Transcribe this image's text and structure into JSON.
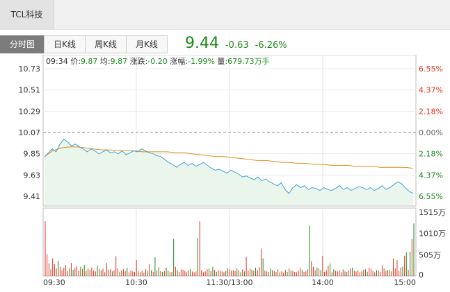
{
  "stock_tab": {
    "label": "TCL科技"
  },
  "tabs": [
    {
      "label": "分时图",
      "active": true
    },
    {
      "label": "日K线",
      "active": false
    },
    {
      "label": "周K线",
      "active": false
    },
    {
      "label": "月K线",
      "active": false
    }
  ],
  "quote": {
    "price": "9.44",
    "change": "-0.63",
    "change_pct": "-6.26%"
  },
  "info": {
    "time": "09:34",
    "price_label": "价:",
    "price": "9.87",
    "avg_label": "均:",
    "avg": "9.87",
    "change_label": "涨跌:",
    "change": "-0.20",
    "pct_label": "涨幅:",
    "pct": "-1.99%",
    "vol_label": "量:",
    "vol": "679.73万手"
  },
  "colors": {
    "up": "#e0331f",
    "down": "#1b8a1b",
    "price_line": "#3aa3d6",
    "avg_line": "#e08c1a",
    "area": "#eaf5ec"
  },
  "chart_data": {
    "type": "line",
    "prev_close": 10.07,
    "ylim": [
      9.41,
      10.73
    ],
    "y_ticks": [
      "10.73",
      "10.51",
      "10.29",
      "10.07",
      "9.85",
      "9.63",
      "9.41"
    ],
    "right_ticks": [
      "6.55%",
      "4.37%",
      "2.18%",
      "0.00%",
      "2.18%",
      "4.37%",
      "6.55%"
    ],
    "x_ticks": [
      "09:30",
      "10:30",
      "11:30/13:00",
      "14:00",
      "15:00"
    ],
    "series": [
      {
        "values": [
          9.82,
          9.86,
          9.9,
          9.87,
          9.95,
          10.0,
          9.97,
          9.93,
          9.95,
          9.92,
          9.9,
          9.87,
          9.9,
          9.88,
          9.85,
          9.87,
          9.89,
          9.86,
          9.87,
          9.85,
          9.88,
          9.84,
          9.86,
          9.88,
          9.87,
          9.9,
          9.88,
          9.86,
          9.85,
          9.83,
          9.82,
          9.79,
          9.76,
          9.74,
          9.71,
          9.74,
          9.76,
          9.73,
          9.75,
          9.72,
          9.74,
          9.76,
          9.73,
          9.7,
          9.68,
          9.69,
          9.67,
          9.65,
          9.68,
          9.66,
          9.64,
          9.61,
          9.62,
          9.6,
          9.58,
          9.61,
          9.57,
          9.59,
          9.56,
          9.54,
          9.52,
          9.55,
          9.48,
          9.44,
          9.5,
          9.53,
          9.5,
          9.52,
          9.48,
          9.5,
          9.49,
          9.47,
          9.5,
          9.48,
          9.47,
          9.49,
          9.52,
          9.48,
          9.5,
          9.47,
          9.49,
          9.51,
          9.5,
          9.48,
          9.5,
          9.47,
          9.49,
          9.52,
          9.48,
          9.5,
          9.53,
          9.56,
          9.54,
          9.5,
          9.46,
          9.44
        ]
      },
      {
        "values": [
          9.82,
          9.88,
          9.91,
          9.92,
          9.92,
          9.91,
          9.9,
          9.89,
          9.89,
          9.88,
          9.88,
          9.88,
          9.87,
          9.87,
          9.87,
          9.87,
          9.86,
          9.86,
          9.85,
          9.84,
          9.83,
          9.82,
          9.82,
          9.81,
          9.8,
          9.79,
          9.78,
          9.78,
          9.77,
          9.76,
          9.76,
          9.75,
          9.75,
          9.74,
          9.74,
          9.73,
          9.73,
          9.73,
          9.72,
          9.72,
          9.72,
          9.71,
          9.71,
          9.71,
          9.71,
          9.7
        ]
      }
    ],
    "volume": {
      "y_ticks": [
        "1515万",
        "1010万",
        "505万",
        "0"
      ],
      "ylim": [
        0,
        1515
      ],
      "values": [
        1300,
        520,
        300,
        160,
        420,
        280,
        180,
        360,
        220,
        140,
        200,
        260,
        120,
        180,
        310,
        150,
        200,
        240,
        130,
        220,
        170,
        260,
        120,
        180,
        150,
        200,
        130,
        110,
        250,
        170,
        140,
        180,
        90,
        310,
        150,
        160,
        110,
        140,
        470,
        180,
        100,
        130,
        160,
        120,
        200,
        90,
        140,
        110,
        100,
        380,
        120,
        90,
        130,
        80,
        160,
        110,
        280,
        140,
        100,
        450,
        130,
        210,
        120,
        100,
        120,
        200,
        130,
        90,
        100,
        880,
        220,
        140,
        100,
        160,
        150,
        120,
        90,
        140,
        170,
        110,
        90,
        110,
        900,
        1300,
        140,
        90,
        110,
        160,
        180,
        120,
        220,
        150,
        100,
        140,
        130,
        110,
        90,
        120,
        180,
        160,
        130,
        140,
        120,
        180,
        140,
        90,
        160,
        110,
        460,
        130,
        180,
        150,
        120,
        200,
        140,
        210,
        650,
        420,
        130,
        110,
        100,
        180,
        140,
        120,
        100,
        160,
        90,
        110,
        80,
        150,
        100,
        180,
        140,
        120,
        100,
        90,
        130,
        200,
        150,
        100,
        110,
        160,
        1200,
        350,
        220,
        140,
        200,
        180,
        140,
        480,
        100,
        140,
        250,
        300,
        90,
        160,
        120,
        110,
        140,
        90,
        160,
        110,
        100,
        130,
        180,
        200,
        120,
        110,
        140,
        90,
        110,
        150,
        160,
        100,
        200,
        170,
        120,
        90,
        140,
        130,
        100,
        260,
        180,
        120,
        150,
        140,
        110,
        420,
        180,
        380,
        120,
        200,
        220,
        480,
        560,
        150,
        580,
        880,
        1250
      ]
    }
  }
}
